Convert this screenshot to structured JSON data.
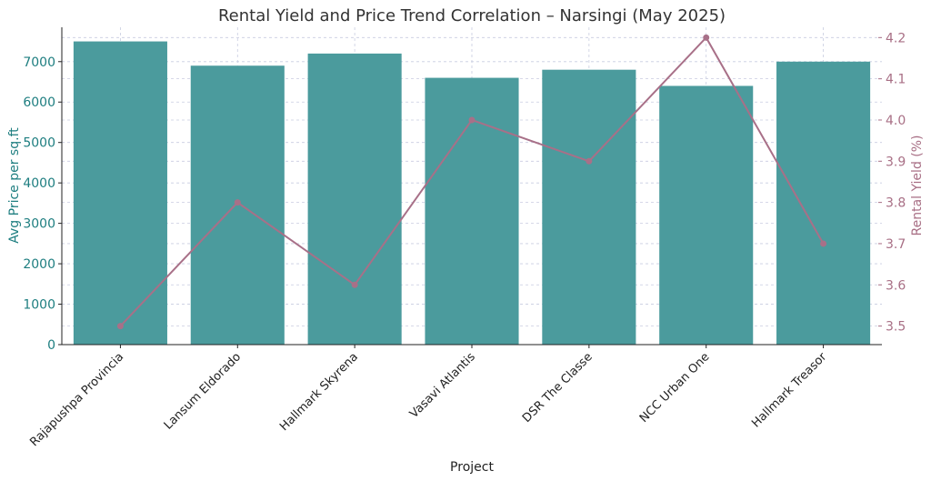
{
  "chart_data": {
    "type": "bar",
    "title": "Rental Yield and Price Trend Correlation – Narsingi (May 2025)",
    "xlabel": "Project",
    "ylabel": "Avg Price per sq.ft",
    "y2label": "Rental Yield (%)",
    "categories": [
      "Rajapushpa Provincia",
      "Lansum Eldorado",
      "Hallmark Skyrena",
      "Vasavi Atlantis",
      "DSR The Classe",
      "NCC Urban One",
      "Hallmark Treasor"
    ],
    "series": [
      {
        "type": "bar",
        "axis": "left",
        "values": [
          7500,
          6900,
          7200,
          6600,
          6800,
          6400,
          7000
        ]
      },
      {
        "type": "line",
        "axis": "right",
        "values": [
          3.5,
          3.8,
          3.6,
          4.0,
          3.9,
          4.2,
          3.7
        ]
      }
    ],
    "ylim": [
      0,
      7850
    ],
    "y2lim": [
      3.455,
      4.225
    ],
    "yticks": [
      0,
      1000,
      2000,
      3000,
      4000,
      5000,
      6000,
      7000
    ],
    "y2ticks": [
      3.5,
      3.6,
      3.7,
      3.8,
      3.9,
      4.0,
      4.1,
      4.2
    ],
    "grid": true,
    "colors": {
      "bar": "#4B9B9D",
      "line": "#A87088",
      "left_axis": "#1E7E80",
      "right_axis": "#A86F85",
      "grid": "#C8CCE0"
    }
  }
}
